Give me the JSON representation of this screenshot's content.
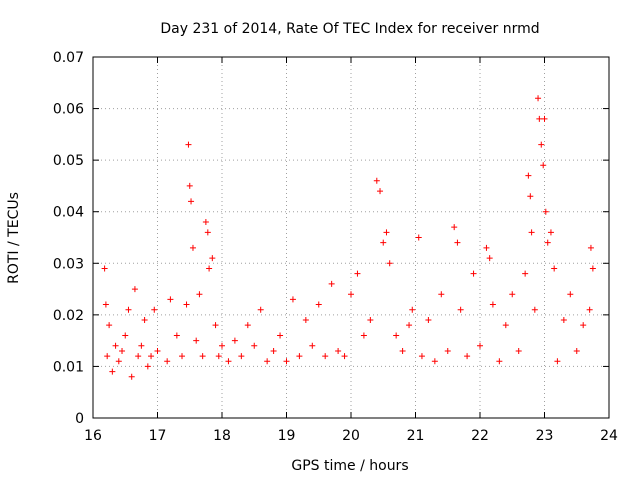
{
  "chart_data": {
    "type": "scatter",
    "title": "Day 231 of 2014, Rate Of TEC Index for receiver nrmd",
    "xlabel": "GPS time / hours",
    "ylabel": "ROTI / TECUs",
    "xlim": [
      16,
      24
    ],
    "ylim": [
      0,
      0.07
    ],
    "xticks": [
      "16",
      "17",
      "18",
      "19",
      "20",
      "21",
      "22",
      "23",
      "24"
    ],
    "yticks": [
      "0",
      "0.01",
      "0.02",
      "0.03",
      "0.04",
      "0.05",
      "0.06",
      "0.07"
    ],
    "grid": true,
    "marker": "+",
    "color": "#ff0000",
    "series": [
      {
        "name": "ROTI",
        "x": [
          16.18,
          16.2,
          16.22,
          16.25,
          16.3,
          16.35,
          16.4,
          16.45,
          16.5,
          16.55,
          16.6,
          16.65,
          16.7,
          16.75,
          16.8,
          16.85,
          16.9,
          16.95,
          17.0,
          17.15,
          17.2,
          17.3,
          17.38,
          17.45,
          17.48,
          17.5,
          17.52,
          17.55,
          17.6,
          17.65,
          17.7,
          17.75,
          17.78,
          17.8,
          17.85,
          17.9,
          17.95,
          18.0,
          18.1,
          18.2,
          18.3,
          18.4,
          18.5,
          18.6,
          18.7,
          18.8,
          18.9,
          19.0,
          19.1,
          19.2,
          19.3,
          19.4,
          19.5,
          19.6,
          19.7,
          19.8,
          19.9,
          20.0,
          20.1,
          20.2,
          20.3,
          20.4,
          20.45,
          20.5,
          20.55,
          20.6,
          20.7,
          20.8,
          20.9,
          20.95,
          21.05,
          21.1,
          21.2,
          21.3,
          21.4,
          21.5,
          21.6,
          21.65,
          21.7,
          21.8,
          21.9,
          22.0,
          22.1,
          22.15,
          22.2,
          22.3,
          22.4,
          22.5,
          22.6,
          22.7,
          22.75,
          22.78,
          22.8,
          22.85,
          22.9,
          22.92,
          22.95,
          22.98,
          23.0,
          23.02,
          23.05,
          23.1,
          23.15,
          23.2,
          23.3,
          23.4,
          23.5,
          23.6,
          23.7,
          23.72,
          23.75
        ],
        "y": [
          0.029,
          0.022,
          0.012,
          0.018,
          0.009,
          0.014,
          0.011,
          0.013,
          0.016,
          0.021,
          0.008,
          0.025,
          0.012,
          0.014,
          0.019,
          0.01,
          0.012,
          0.021,
          0.013,
          0.011,
          0.023,
          0.016,
          0.012,
          0.022,
          0.053,
          0.045,
          0.042,
          0.033,
          0.015,
          0.024,
          0.012,
          0.038,
          0.036,
          0.029,
          0.031,
          0.018,
          0.012,
          0.014,
          0.011,
          0.015,
          0.012,
          0.018,
          0.014,
          0.021,
          0.011,
          0.013,
          0.016,
          0.011,
          0.023,
          0.012,
          0.019,
          0.014,
          0.022,
          0.012,
          0.026,
          0.013,
          0.012,
          0.024,
          0.028,
          0.016,
          0.019,
          0.046,
          0.044,
          0.034,
          0.036,
          0.03,
          0.016,
          0.013,
          0.018,
          0.021,
          0.035,
          0.012,
          0.019,
          0.011,
          0.024,
          0.013,
          0.037,
          0.034,
          0.021,
          0.012,
          0.028,
          0.014,
          0.033,
          0.031,
          0.022,
          0.011,
          0.018,
          0.024,
          0.013,
          0.028,
          0.047,
          0.043,
          0.036,
          0.021,
          0.062,
          0.058,
          0.053,
          0.049,
          0.058,
          0.04,
          0.034,
          0.036,
          0.029,
          0.011,
          0.019,
          0.024,
          0.013,
          0.018,
          0.021,
          0.033,
          0.029
        ]
      }
    ]
  }
}
